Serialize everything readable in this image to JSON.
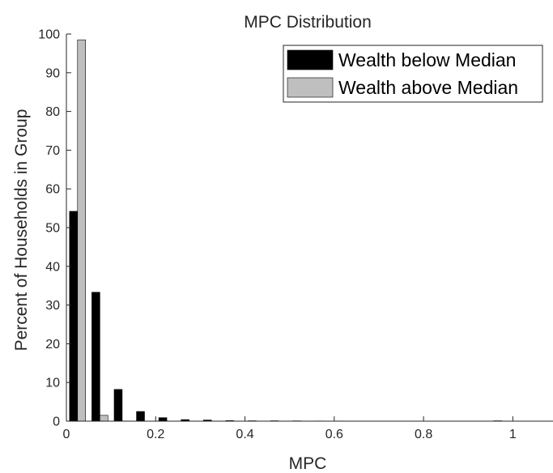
{
  "chart_data": {
    "type": "bar",
    "title": "MPC Distribution",
    "xlabel": "MPC",
    "ylabel": "Percent of Households in Group",
    "xlim": [
      0,
      1.09
    ],
    "ylim": [
      0,
      100
    ],
    "xticks": [
      0,
      0.2,
      0.4,
      0.6,
      0.8,
      1
    ],
    "xtick_labels": [
      "0",
      "0.2",
      "0.4",
      "0.6",
      "0.8",
      "1"
    ],
    "yticks": [
      0,
      10,
      20,
      30,
      40,
      50,
      60,
      70,
      80,
      90,
      100
    ],
    "ytick_labels": [
      "0",
      "10",
      "20",
      "30",
      "40",
      "50",
      "60",
      "70",
      "80",
      "90",
      "100"
    ],
    "grid": false,
    "legend_position": "top-right",
    "x": [
      0.025,
      0.075,
      0.125,
      0.175,
      0.225,
      0.275,
      0.325,
      0.375,
      0.425,
      0.475,
      0.525,
      0.575,
      0.625,
      0.675,
      0.725,
      0.775,
      0.825,
      0.875,
      0.925,
      0.975
    ],
    "series": [
      {
        "name": "Wealth below Median",
        "color": "#000000",
        "values": [
          54.2,
          33.3,
          8.2,
          2.5,
          0.9,
          0.4,
          0.3,
          0.15,
          0.1,
          0.1,
          0.08,
          0.05,
          0.05,
          0.04,
          0.04,
          0.03,
          0.03,
          0.03,
          0.03,
          0.1
        ]
      },
      {
        "name": "Wealth above Median",
        "color": "#bfbfbf",
        "values": [
          98.5,
          1.5,
          0.05,
          0.0,
          0.0,
          0.0,
          0.0,
          0.0,
          0.0,
          0.0,
          0.0,
          0.0,
          0.0,
          0.0,
          0.0,
          0.0,
          0.0,
          0.0,
          0.0,
          0.0
        ]
      }
    ]
  }
}
